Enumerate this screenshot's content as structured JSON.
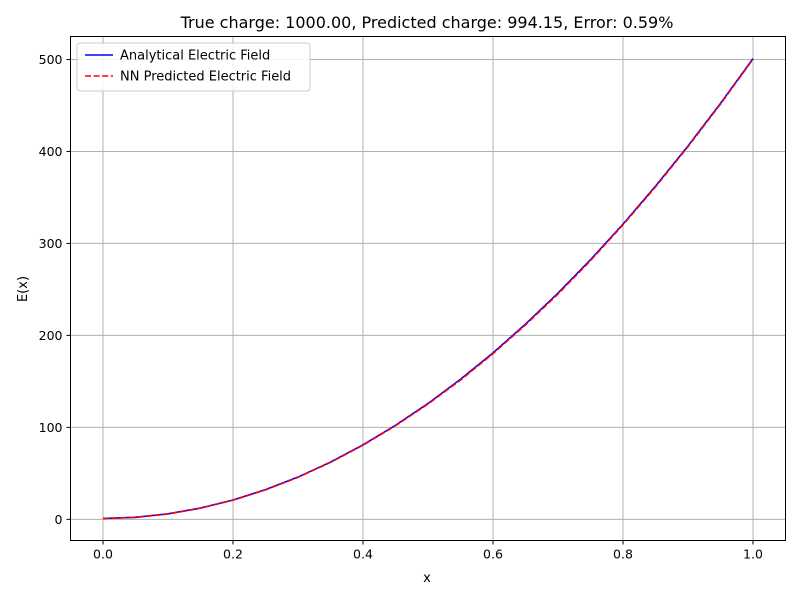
{
  "chart_data": {
    "type": "line",
    "title": "True charge: 1000.00, Predicted charge: 994.15, Error: 0.59%",
    "xlabel": "x",
    "ylabel": "E(x)",
    "xlim": [
      -0.05,
      1.05
    ],
    "ylim": [
      -23,
      525
    ],
    "xticks": [
      0.0,
      0.2,
      0.4,
      0.6,
      0.8,
      1.0
    ],
    "xtick_labels": [
      "0.0",
      "0.2",
      "0.4",
      "0.6",
      "0.8",
      "1.0"
    ],
    "yticks": [
      0,
      100,
      200,
      300,
      400,
      500
    ],
    "ytick_labels": [
      "0",
      "100",
      "200",
      "300",
      "400",
      "500"
    ],
    "grid": true,
    "legend_position": "top-left",
    "series": [
      {
        "name": "Analytical Electric Field",
        "color": "#0000ff",
        "style": "solid",
        "x": [
          0.0,
          0.05,
          0.1,
          0.15,
          0.2,
          0.25,
          0.3,
          0.35,
          0.4,
          0.45,
          0.5,
          0.55,
          0.6,
          0.65,
          0.7,
          0.75,
          0.8,
          0.85,
          0.9,
          0.95,
          1.0
        ],
        "y": [
          1.0,
          2.2,
          6.0,
          12.3,
          21.0,
          32.3,
          46.0,
          62.3,
          81.0,
          102.3,
          126.0,
          152.3,
          181.0,
          212.3,
          246.0,
          282.3,
          321.0,
          362.3,
          406.0,
          452.3,
          501.0
        ]
      },
      {
        "name": "NN Predicted Electric Field",
        "color": "#ff0000",
        "style": "dashed",
        "x": [
          0.0,
          0.05,
          0.1,
          0.15,
          0.2,
          0.25,
          0.3,
          0.35,
          0.4,
          0.45,
          0.5,
          0.55,
          0.6,
          0.65,
          0.7,
          0.75,
          0.8,
          0.85,
          0.9,
          0.95,
          1.0
        ],
        "y": [
          1.0,
          2.1,
          5.8,
          12.1,
          20.8,
          32.0,
          45.7,
          61.9,
          80.6,
          101.8,
          125.4,
          151.4,
          180.2,
          211.4,
          245.0,
          281.3,
          320.2,
          361.4,
          405.2,
          451.5,
          500.3
        ]
      }
    ]
  }
}
